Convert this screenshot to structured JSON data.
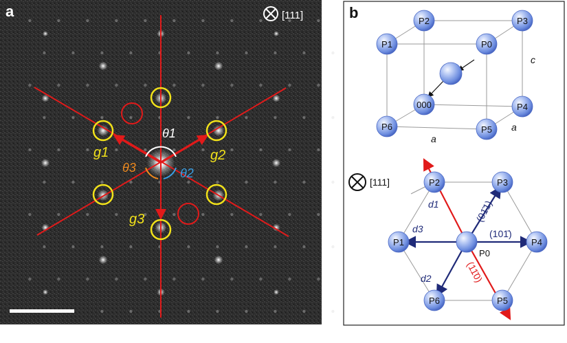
{
  "panel_a": {
    "label": "a",
    "zone_axis": "[111]",
    "angle_labels": [
      "θ1",
      "θ2",
      "θ3"
    ],
    "vector_labels": [
      "g1",
      "g2",
      "g3"
    ],
    "colors": {
      "background": "#2a2a2a",
      "lines": "#e11a1a",
      "yellow_circles": "#f2e21a",
      "red_circles": "#e11a1a",
      "theta1": "#ffffff",
      "theta2": "#3aa0e6",
      "theta3": "#f08a1e"
    }
  },
  "panel_b": {
    "label": "b",
    "cube": {
      "points": [
        "P2",
        "P3",
        "P1",
        "P0",
        "000",
        "P4",
        "P6",
        "P5"
      ],
      "edge_labels": [
        "c",
        "a",
        "a"
      ]
    },
    "projection": {
      "zone_axis": "[111]",
      "points": [
        "P2",
        "P3",
        "P1",
        "P0",
        "P4",
        "P6",
        "P5"
      ],
      "d_labels": [
        "d1",
        "d3",
        "d2"
      ],
      "planes": [
        "(01̄1)",
        "(101̄)",
        "(11̄0)"
      ],
      "colors": {
        "navy": "#1f2a78",
        "red": "#e11a1a",
        "sphere": "#7a9ae6"
      }
    }
  }
}
